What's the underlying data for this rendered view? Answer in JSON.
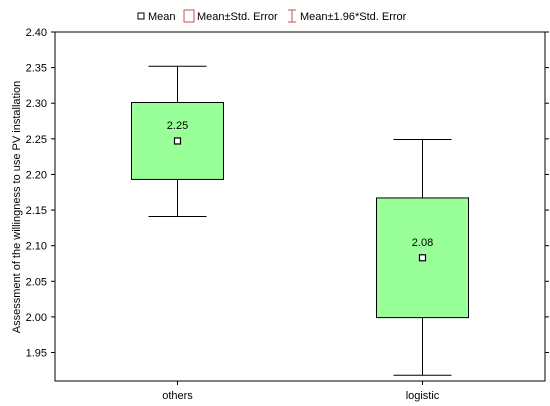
{
  "chart_data": {
    "type": "box",
    "title": "",
    "xlabel": "",
    "ylabel": "Assessment of the willingness to use PV installation",
    "ylim": [
      1.91,
      2.4
    ],
    "yticks": [
      1.95,
      2.0,
      2.05,
      2.1,
      2.15,
      2.2,
      2.25,
      2.3,
      2.35,
      2.4
    ],
    "ytick_labels": [
      "1.95",
      "2.00",
      "2.05",
      "2.10",
      "2.15",
      "2.20",
      "2.25",
      "2.30",
      "2.35",
      "2.40"
    ],
    "grid": false,
    "legend": {
      "placement": "top-center",
      "entries": [
        "Mean",
        "Mean±Std. Error",
        "Mean±1.96*Std. Error"
      ]
    },
    "categories": [
      "others",
      "logistic"
    ],
    "groups": [
      {
        "category": "others",
        "mean": 2.247,
        "mean_label": "2.25",
        "se_low": 2.193,
        "se_high": 2.301,
        "ci_low": 2.141,
        "ci_high": 2.352
      },
      {
        "category": "logistic",
        "mean": 2.083,
        "mean_label": "2.08",
        "se_low": 1.999,
        "se_high": 2.167,
        "ci_low": 1.918,
        "ci_high": 2.249
      }
    ],
    "colors": {
      "box_fill": "#99ff99",
      "box_stroke": "#000000",
      "legend_se": "#c0504d",
      "legend_ci": "#c0504d"
    }
  }
}
